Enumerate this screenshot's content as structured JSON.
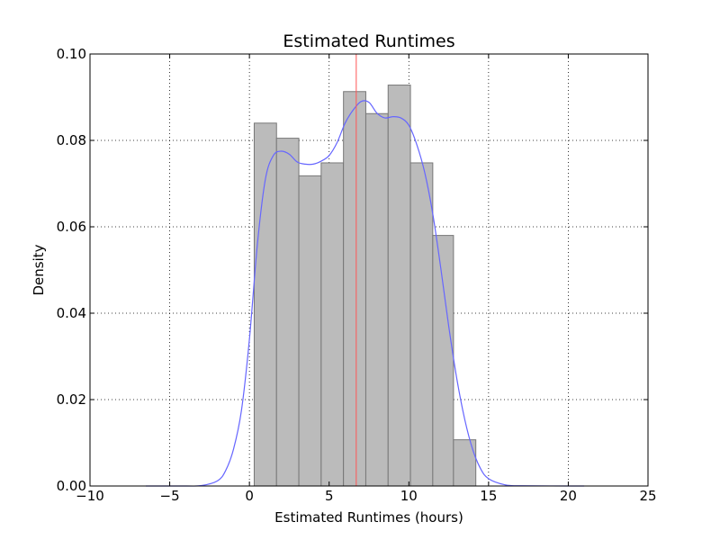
{
  "chart_data": {
    "type": "bar",
    "title": "Estimated Runtimes",
    "xlabel": "Estimated Runtimes (hours)",
    "ylabel": "Density",
    "xlim": [
      -10,
      25
    ],
    "ylim": [
      0,
      0.1
    ],
    "x_ticks": [
      -10,
      -5,
      0,
      5,
      10,
      15,
      20,
      25
    ],
    "x_tick_labels": [
      "−10",
      "−5",
      "0",
      "5",
      "10",
      "15",
      "20",
      "25"
    ],
    "y_ticks": [
      0,
      0.02,
      0.04,
      0.06,
      0.08,
      0.1
    ],
    "y_tick_labels": [
      "0.00",
      "0.02",
      "0.04",
      "0.06",
      "0.08",
      "0.10"
    ],
    "grid": true,
    "histogram": {
      "bin_edges": [
        0.3,
        1.7,
        3.1,
        4.5,
        5.9,
        7.3,
        8.7,
        10.1,
        11.5,
        12.8,
        14.2
      ],
      "values": [
        0.084,
        0.0805,
        0.0718,
        0.0748,
        0.0913,
        0.0862,
        0.0928,
        0.0748,
        0.058,
        0.0107
      ],
      "color": "#bbbbbb",
      "edge_color": "#777777"
    },
    "kde": {
      "color": "#6666ff",
      "x": [
        -6.5,
        -4,
        -3,
        -2,
        -1.5,
        -1,
        -0.5,
        0,
        0.5,
        1,
        1.5,
        2,
        2.5,
        3,
        3.5,
        4,
        4.5,
        5,
        5.5,
        6,
        6.5,
        7,
        7.5,
        8,
        8.5,
        9,
        9.5,
        10,
        10.5,
        11,
        11.5,
        12,
        12.5,
        13,
        13.5,
        14,
        14.5,
        15,
        16,
        17,
        21
      ],
      "y": [
        0,
        0,
        0.0001,
        0.0012,
        0.0035,
        0.0085,
        0.0175,
        0.034,
        0.056,
        0.071,
        0.0765,
        0.0775,
        0.0768,
        0.075,
        0.0745,
        0.0745,
        0.0752,
        0.0765,
        0.0795,
        0.084,
        0.087,
        0.089,
        0.0888,
        0.0863,
        0.0852,
        0.0855,
        0.0852,
        0.0835,
        0.079,
        0.0725,
        0.063,
        0.0505,
        0.037,
        0.025,
        0.0155,
        0.0085,
        0.004,
        0.0017,
        0.0003,
        5e-05,
        0
      ]
    },
    "vline": {
      "x": 6.7,
      "color": "#ff5555"
    }
  }
}
